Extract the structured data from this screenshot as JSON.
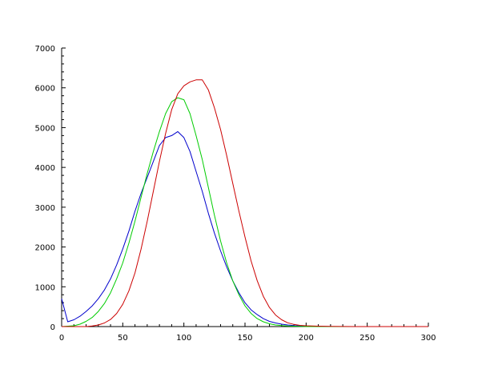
{
  "chart_data": {
    "type": "line",
    "title": "",
    "xlabel": "",
    "ylabel": "",
    "xlim": [
      0,
      300
    ],
    "ylim": [
      0,
      7000
    ],
    "x_ticks": [
      0,
      50,
      100,
      150,
      200,
      250,
      300
    ],
    "y_ticks": [
      0,
      1000,
      2000,
      3000,
      4000,
      5000,
      6000,
      7000
    ],
    "grid": false,
    "legend": "none",
    "series": [
      {
        "color": "#0000cc",
        "x": [
          0,
          5,
          10,
          15,
          20,
          25,
          30,
          35,
          40,
          45,
          50,
          55,
          60,
          65,
          70,
          75,
          80,
          85,
          90,
          95,
          100,
          105,
          110,
          115,
          120,
          125,
          130,
          135,
          140,
          145,
          150,
          155,
          160,
          165,
          170,
          175,
          180,
          185,
          190,
          195,
          200,
          210,
          220,
          240,
          260,
          280,
          300
        ],
        "y": [
          700,
          120,
          170,
          260,
          380,
          520,
          700,
          920,
          1200,
          1550,
          1950,
          2400,
          2900,
          3350,
          3750,
          4150,
          4550,
          4750,
          4800,
          4900,
          4750,
          4400,
          3900,
          3400,
          2850,
          2350,
          1900,
          1500,
          1150,
          850,
          600,
          420,
          300,
          200,
          130,
          90,
          60,
          40,
          25,
          15,
          10,
          5,
          0,
          0,
          0,
          0,
          0
        ]
      },
      {
        "color": "#00cc00",
        "x": [
          0,
          10,
          15,
          20,
          25,
          30,
          35,
          40,
          45,
          50,
          55,
          60,
          65,
          70,
          75,
          80,
          85,
          90,
          95,
          100,
          105,
          110,
          115,
          120,
          125,
          130,
          135,
          140,
          145,
          150,
          155,
          160,
          165,
          170,
          175,
          180,
          185,
          190,
          195,
          200,
          210,
          220,
          240,
          260,
          280,
          300
        ],
        "y": [
          0,
          20,
          60,
          130,
          230,
          380,
          580,
          850,
          1200,
          1600,
          2100,
          2650,
          3250,
          3850,
          4400,
          4900,
          5350,
          5650,
          5750,
          5700,
          5350,
          4800,
          4200,
          3500,
          2800,
          2150,
          1600,
          1150,
          800,
          520,
          330,
          200,
          120,
          70,
          40,
          25,
          15,
          10,
          5,
          0,
          0,
          0,
          0,
          0,
          0,
          0
        ]
      },
      {
        "color": "#cc0000",
        "x": [
          0,
          20,
          25,
          30,
          35,
          40,
          45,
          50,
          55,
          60,
          65,
          70,
          75,
          80,
          85,
          90,
          95,
          100,
          105,
          110,
          115,
          120,
          125,
          130,
          135,
          140,
          145,
          150,
          155,
          160,
          165,
          170,
          175,
          180,
          185,
          190,
          195,
          200,
          210,
          220,
          240,
          260,
          280,
          300
        ],
        "y": [
          0,
          0,
          15,
          40,
          90,
          180,
          330,
          560,
          900,
          1350,
          1950,
          2650,
          3400,
          4150,
          4850,
          5450,
          5850,
          6050,
          6150,
          6200,
          6200,
          5950,
          5500,
          4950,
          4300,
          3600,
          2900,
          2250,
          1650,
          1150,
          760,
          480,
          290,
          170,
          95,
          55,
          30,
          20,
          10,
          5,
          0,
          0,
          0,
          0
        ]
      }
    ]
  }
}
